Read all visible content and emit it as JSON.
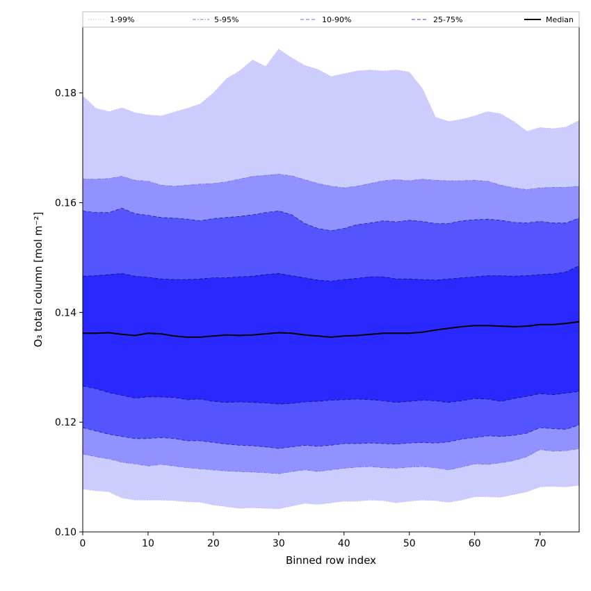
{
  "chart_data": {
    "type": "area",
    "title": "",
    "xlabel": "Binned row index",
    "ylabel": "O₃ total column [mol m⁻²]",
    "xlim": [
      0,
      76
    ],
    "ylim": [
      0.1,
      0.192
    ],
    "x_ticks": [
      0,
      10,
      20,
      30,
      40,
      50,
      60,
      70
    ],
    "y_ticks": [
      0.1,
      0.12,
      0.14,
      0.16,
      0.18
    ],
    "y_tick_labels": [
      "0.10",
      "0.12",
      "0.14",
      "0.16",
      "0.18"
    ],
    "grid": false,
    "legend_position": "top",
    "x": [
      0,
      2,
      4,
      6,
      8,
      10,
      12,
      14,
      16,
      18,
      20,
      22,
      24,
      26,
      28,
      30,
      32,
      34,
      36,
      38,
      40,
      42,
      44,
      46,
      48,
      50,
      52,
      54,
      56,
      58,
      60,
      62,
      64,
      66,
      68,
      70,
      72,
      74,
      76
    ],
    "bands": [
      {
        "name": "1-99%",
        "color": "#ccccff",
        "line_color": "#bbbbee",
        "line_style": "dotted",
        "lower": [
          0.1078,
          0.1075,
          0.1073,
          0.1062,
          0.1058,
          0.1058,
          0.1058,
          0.1057,
          0.1055,
          0.1054,
          0.1049,
          0.1046,
          0.1043,
          0.1044,
          0.1043,
          0.1042,
          0.1047,
          0.1052,
          0.105,
          0.1053,
          0.1056,
          0.1056,
          0.1058,
          0.1057,
          0.1053,
          0.1056,
          0.1058,
          0.1057,
          0.1054,
          0.1058,
          0.1064,
          0.1064,
          0.1063,
          0.1068,
          0.1073,
          0.1082,
          0.1083,
          0.1082,
          0.1085
        ],
        "upper": [
          0.1795,
          0.1772,
          0.1766,
          0.1773,
          0.1764,
          0.176,
          0.1758,
          0.1765,
          0.1772,
          0.178,
          0.18,
          0.1826,
          0.184,
          0.186,
          0.1848,
          0.188,
          0.1864,
          0.185,
          0.1843,
          0.183,
          0.1835,
          0.184,
          0.1842,
          0.184,
          0.1842,
          0.1838,
          0.1808,
          0.1756,
          0.1748,
          0.1752,
          0.1758,
          0.1766,
          0.1762,
          0.1748,
          0.173,
          0.1737,
          0.1735,
          0.1738,
          0.175
        ]
      },
      {
        "name": "5-95%",
        "color": "#9191ff",
        "line_color": "#7777cc",
        "line_style": "dashdot",
        "lower": [
          0.1142,
          0.1137,
          0.1133,
          0.1127,
          0.1124,
          0.112,
          0.1123,
          0.112,
          0.1117,
          0.1115,
          0.1113,
          0.1111,
          0.111,
          0.1109,
          0.1108,
          0.1106,
          0.111,
          0.1113,
          0.111,
          0.1113,
          0.1116,
          0.1118,
          0.1119,
          0.1117,
          0.1116,
          0.1118,
          0.1119,
          0.1117,
          0.1113,
          0.1118,
          0.1124,
          0.1123,
          0.1126,
          0.113,
          0.1137,
          0.115,
          0.1147,
          0.1148,
          0.1152
        ],
        "upper": [
          0.1643,
          0.1643,
          0.1644,
          0.1648,
          0.1641,
          0.1639,
          0.1632,
          0.163,
          0.1632,
          0.1634,
          0.1635,
          0.1638,
          0.1643,
          0.1648,
          0.165,
          0.1652,
          0.1649,
          0.1642,
          0.1635,
          0.163,
          0.1627,
          0.163,
          0.1635,
          0.164,
          0.1642,
          0.164,
          0.1643,
          0.1641,
          0.164,
          0.164,
          0.1641,
          0.1639,
          0.1632,
          0.1627,
          0.1624,
          0.1627,
          0.1628,
          0.1628,
          0.163
        ]
      },
      {
        "name": "10-90%",
        "color": "#5555ff",
        "line_color": "#222288",
        "line_style": "dashed",
        "lower": [
          0.119,
          0.1184,
          0.1178,
          0.1174,
          0.117,
          0.117,
          0.1172,
          0.117,
          0.1166,
          0.1166,
          0.1163,
          0.116,
          0.1158,
          0.1157,
          0.1155,
          0.1152,
          0.1155,
          0.1158,
          0.1156,
          0.1158,
          0.1161,
          0.1161,
          0.1162,
          0.1161,
          0.116,
          0.1162,
          0.1163,
          0.1162,
          0.1164,
          0.1169,
          0.1172,
          0.1175,
          0.1174,
          0.1176,
          0.118,
          0.119,
          0.1188,
          0.1187,
          0.1195
        ],
        "upper": [
          0.1585,
          0.1582,
          0.1582,
          0.159,
          0.158,
          0.1577,
          0.1573,
          0.1572,
          0.157,
          0.1567,
          0.1571,
          0.1573,
          0.1575,
          0.1578,
          0.1582,
          0.1585,
          0.1578,
          0.1562,
          0.1553,
          0.1549,
          0.1553,
          0.156,
          0.1563,
          0.1567,
          0.1565,
          0.1568,
          0.1566,
          0.1562,
          0.1562,
          0.1567,
          0.1569,
          0.157,
          0.1568,
          0.1564,
          0.1563,
          0.1566,
          0.1563,
          0.1563,
          0.1572
        ]
      },
      {
        "name": "25-75%",
        "color": "#2929ff",
        "line_color": "#111166",
        "line_style": "dashed",
        "lower": [
          0.1266,
          0.1261,
          0.1254,
          0.1249,
          0.1244,
          0.1246,
          0.1246,
          0.1245,
          0.1241,
          0.1242,
          0.1238,
          0.1236,
          0.1237,
          0.1236,
          0.1235,
          0.1233,
          0.1234,
          0.1237,
          0.1238,
          0.124,
          0.1241,
          0.1242,
          0.1241,
          0.1239,
          0.1236,
          0.1238,
          0.124,
          0.1239,
          0.1236,
          0.1239,
          0.1243,
          0.1242,
          0.1238,
          0.1243,
          0.1247,
          0.1252,
          0.125,
          0.1253,
          0.1256
        ],
        "upper": [
          0.1466,
          0.1467,
          0.1469,
          0.1471,
          0.1466,
          0.1464,
          0.1461,
          0.146,
          0.146,
          0.1461,
          0.1463,
          0.1463,
          0.1465,
          0.1466,
          0.1469,
          0.1471,
          0.1467,
          0.1463,
          0.1459,
          0.1457,
          0.146,
          0.1462,
          0.1465,
          0.1465,
          0.1461,
          0.1461,
          0.146,
          0.1459,
          0.1461,
          0.1463,
          0.1465,
          0.1467,
          0.1467,
          0.1466,
          0.1467,
          0.1469,
          0.147,
          0.1474,
          0.1485
        ]
      }
    ],
    "median": {
      "name": "Median",
      "color": "#000000",
      "values": [
        0.1362,
        0.1362,
        0.1363,
        0.136,
        0.1358,
        0.1362,
        0.1361,
        0.1357,
        0.1355,
        0.1355,
        0.1357,
        0.1359,
        0.1358,
        0.1359,
        0.1361,
        0.1363,
        0.1362,
        0.1359,
        0.1357,
        0.1355,
        0.1357,
        0.1358,
        0.136,
        0.1362,
        0.1362,
        0.1362,
        0.1364,
        0.1368,
        0.1371,
        0.1374,
        0.1376,
        0.1376,
        0.1375,
        0.1374,
        0.1375,
        0.1378,
        0.1378,
        0.138,
        0.1383
      ]
    },
    "legend": [
      {
        "label": "1-99%",
        "style": "dotted",
        "color": "#bbbbee"
      },
      {
        "label": "5-95%",
        "style": "dashdot",
        "color": "#7777cc"
      },
      {
        "label": "10-90%",
        "style": "dashed",
        "color": "#6666ff"
      },
      {
        "label": "25-75%",
        "style": "dashed",
        "color": "#3333ff"
      },
      {
        "label": "Median",
        "style": "solid",
        "color": "#000000"
      }
    ]
  }
}
